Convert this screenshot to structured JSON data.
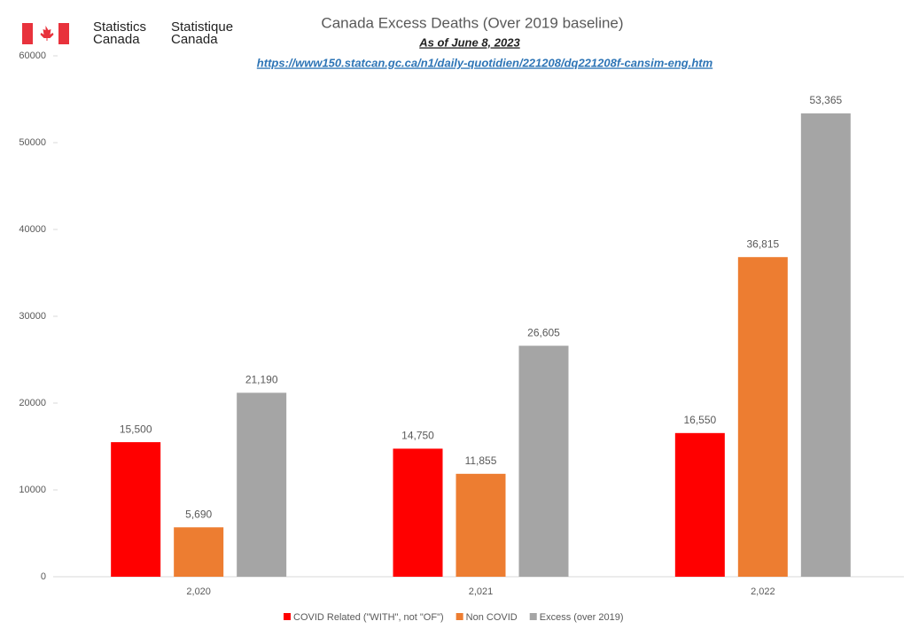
{
  "header": {
    "logo_en": [
      "Statistics",
      "Canada"
    ],
    "logo_fr": [
      "Statistique",
      "Canada"
    ]
  },
  "chart_data": {
    "type": "bar",
    "title": "Canada Excess Deaths (Over 2019 baseline)",
    "subtitle": "As of June 8, 2023",
    "source": "https://www150.statcan.gc.ca/n1/daily-quotidien/221208/dq221208f-cansim-eng.htm",
    "categories": [
      "2,020",
      "2,021",
      "2,022"
    ],
    "series": [
      {
        "name": "COVID Related (\"WITH\", not \"OF\")",
        "color": "#ff0000",
        "values": [
          15500,
          14750,
          16550
        ],
        "value_labels": [
          "15,500",
          "14,750",
          "16,550"
        ]
      },
      {
        "name": "Non COVID",
        "color": "#ed7d31",
        "values": [
          5690,
          11855,
          36815
        ],
        "value_labels": [
          "5,690",
          "11,855",
          "36,815"
        ]
      },
      {
        "name": "Excess (over 2019)",
        "color": "#a5a5a5",
        "values": [
          21190,
          26605,
          53365
        ],
        "value_labels": [
          "21,190",
          "26,605",
          "53,365"
        ]
      }
    ],
    "ylim": [
      0,
      60000
    ],
    "yticks": [
      0,
      10000,
      20000,
      30000,
      40000,
      50000,
      60000
    ],
    "grid": false,
    "legend": "bottom"
  }
}
